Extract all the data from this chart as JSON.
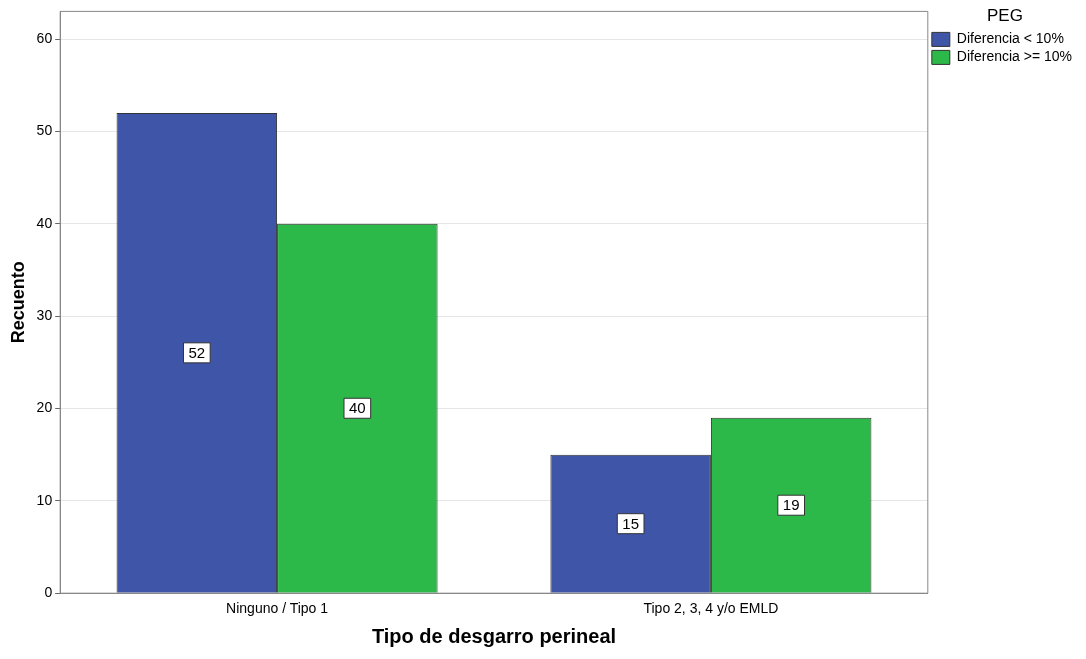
{
  "chart_data": {
    "type": "bar",
    "xlabel": "Tipo de desgarro perineal",
    "ylabel": "Recuento",
    "legend_title": "PEG",
    "categories": [
      "Ninguno / Tipo 1",
      "Tipo 2, 3, 4 y/o EMLD"
    ],
    "series": [
      {
        "name": "Diferencia < 10%",
        "color": "#3f56a8",
        "values": [
          52,
          15
        ]
      },
      {
        "name": "Diferencia >= 10%",
        "color": "#2db84a",
        "values": [
          40,
          19
        ]
      }
    ],
    "ylim": [
      0,
      63
    ],
    "yticks": [
      0,
      10,
      20,
      30,
      40,
      50,
      60
    ],
    "grid": "y",
    "legend": "top right",
    "data_labels": true
  }
}
